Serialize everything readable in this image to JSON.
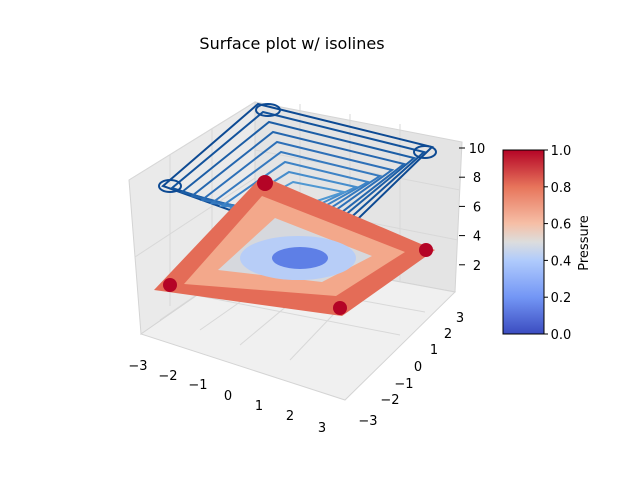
{
  "chart_data": {
    "type": "surface",
    "title": "Surface plot w/ isolines",
    "xlabel": "",
    "ylabel": "",
    "zlabel": "",
    "x_ticks": [
      "−3",
      "−2",
      "−1",
      "0",
      "1",
      "2",
      "3"
    ],
    "y_ticks": [
      "−3",
      "−2",
      "−1",
      "0",
      "1",
      "2",
      "3"
    ],
    "z_ticks": [
      "2",
      "4",
      "6",
      "8",
      "10"
    ],
    "xlim": [
      -3,
      3
    ],
    "ylim": [
      -3,
      3
    ],
    "zlim": [
      0,
      10
    ],
    "colormap": "coolwarm",
    "colorbar": {
      "label": "Pressure",
      "range": [
        0.0,
        1.0
      ],
      "ticks": [
        "0.0",
        "0.2",
        "0.4",
        "0.6",
        "0.8",
        "1.0"
      ]
    },
    "isoline_levels": [
      2,
      3,
      4,
      5,
      6,
      7,
      8,
      9,
      10
    ],
    "isoline_color": "#1f5aa8",
    "grid": true
  }
}
